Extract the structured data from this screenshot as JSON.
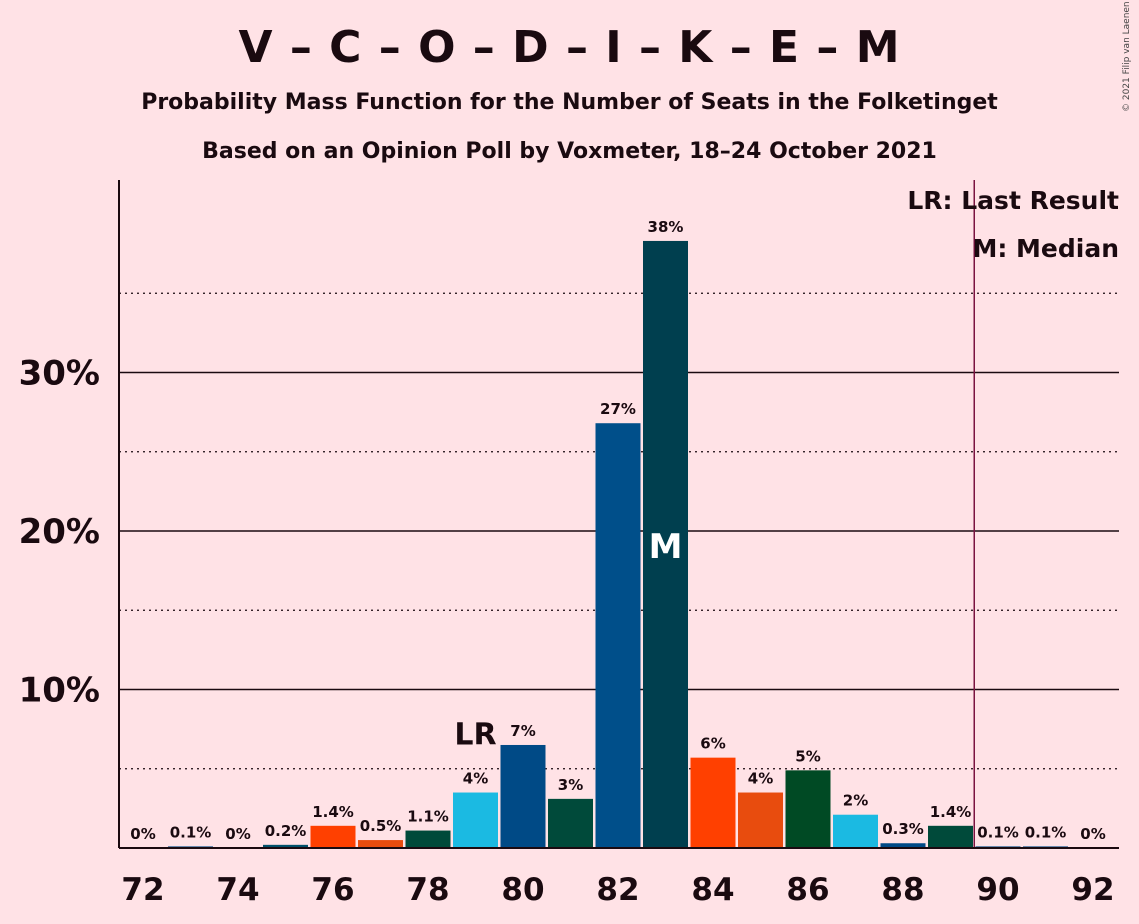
{
  "header": {
    "title": "V – C – O – D – I – K – E – M",
    "subtitle": "Probability Mass Function for the Number of Seats in the Folketinget",
    "source": "Based on an Opinion Poll by Voxmeter, 18–24 October 2021",
    "copyright": "© 2021 Filip van Laenen"
  },
  "legend": {
    "last_result": "LR: Last Result",
    "median": "M: Median"
  },
  "chart_data": {
    "type": "bar",
    "title": "V – C – O – D – I – K – E – M",
    "x": [
      72,
      73,
      74,
      75,
      76,
      77,
      78,
      79,
      80,
      81,
      82,
      83,
      84,
      85,
      86,
      87,
      88,
      89,
      90,
      91,
      92
    ],
    "values": [
      0,
      0.1,
      0,
      0.2,
      1.4,
      0.5,
      1.1,
      3.5,
      6.5,
      3.1,
      26.8,
      38.3,
      5.7,
      3.5,
      4.9,
      2.1,
      0.3,
      1.4,
      0.1,
      0.1,
      0
    ],
    "labels": [
      "0%",
      "0.1%",
      "0%",
      "0.2%",
      "1.4%",
      "0.5%",
      "1.1%",
      "4%",
      "7%",
      "3%",
      "27%",
      "38%",
      "6%",
      "4%",
      "5%",
      "2%",
      "0.3%",
      "1.4%",
      "0.1%",
      "0.1%",
      "0%"
    ],
    "colors": [
      "#004A86",
      "#004A86",
      "#004A86",
      "#00506A",
      "#FF4000",
      "#E84C0E",
      "#004A3A",
      "#1BBAE2",
      "#004A86",
      "#004A3A",
      "#004F8A",
      "#003F4F",
      "#FF4000",
      "#E84C0E",
      "#004A24",
      "#1BBAE2",
      "#004A86",
      "#004A3A",
      "#004A86",
      "#004A86",
      "#004A86"
    ],
    "x_tick_labels": [
      "72",
      "74",
      "76",
      "78",
      "80",
      "82",
      "84",
      "86",
      "88",
      "90",
      "92"
    ],
    "y_tick_labels": [
      "10%",
      "20%",
      "30%"
    ],
    "ylim": [
      0,
      42
    ],
    "last_result": {
      "x": 79,
      "label": "LR"
    },
    "median": {
      "x": 83,
      "label": "M"
    },
    "majority_line_x": 89.5,
    "grid": true,
    "legend_position": "top-right"
  }
}
